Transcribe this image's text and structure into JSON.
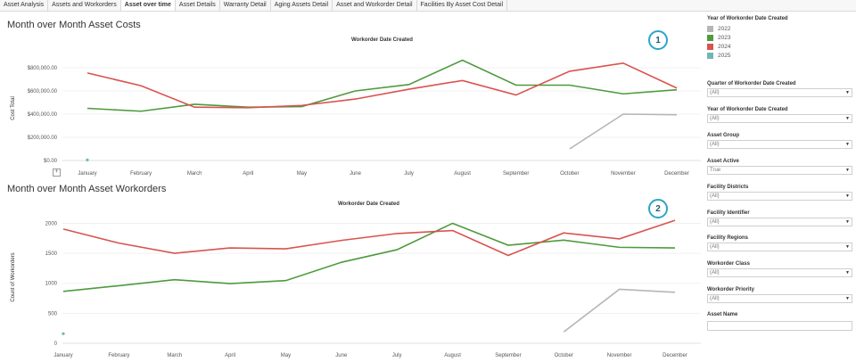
{
  "tabs": [
    {
      "label": "Asset Analysis",
      "active": false
    },
    {
      "label": "Assets and Workorders",
      "active": false
    },
    {
      "label": "Asset over time",
      "active": true
    },
    {
      "label": "Asset Details",
      "active": false
    },
    {
      "label": "Warranty Detail",
      "active": false
    },
    {
      "label": "Aging Assets Detail",
      "active": false
    },
    {
      "label": "Asset and Workorder Detail",
      "active": false
    },
    {
      "label": "Facilities By Asset Cost Detail",
      "active": false
    }
  ],
  "costs_section": {
    "title": "Month over Month Asset Costs",
    "badge": "1"
  },
  "workorders_section": {
    "title": "Month over Month Asset Workorders",
    "badge": "2"
  },
  "legend": {
    "title": "Year of Workorder Date Created",
    "items": [
      {
        "label": "2022",
        "color": "#b5b5b5"
      },
      {
        "label": "2023",
        "color": "#4e9a3e"
      },
      {
        "label": "2024",
        "color": "#d9534f"
      },
      {
        "label": "2025",
        "color": "#6fb7b3"
      }
    ]
  },
  "filters": [
    {
      "label": "Quarter of Workorder Date Created",
      "value": "(All)"
    },
    {
      "label": "Year of Workorder Date Created",
      "value": "(All)"
    },
    {
      "label": "Asset Group",
      "value": "(All)"
    },
    {
      "label": "Asset Active",
      "value": "True"
    },
    {
      "label": "Facility Districts",
      "value": "(All)"
    },
    {
      "label": "Facility Identifier",
      "value": "(All)"
    },
    {
      "label": "Facility Regions",
      "value": "(All)"
    },
    {
      "label": "Workorder Class",
      "value": "(All)"
    },
    {
      "label": "Workorder Priority",
      "value": "(All)"
    }
  ],
  "asset_name": {
    "label": "Asset Name",
    "value": ""
  },
  "chart_data": [
    {
      "type": "line",
      "title": "Workorder Date Created",
      "ylabel": "Cost Total",
      "ylim": [
        0,
        900000
      ],
      "yticks": [
        0,
        200000,
        400000,
        600000,
        800000
      ],
      "ytick_labels": [
        "$0.00",
        "$200,000.00",
        "$400,000.00",
        "$600,000.00",
        "$800,000.00"
      ],
      "categories": [
        "January",
        "February",
        "March",
        "April",
        "May",
        "June",
        "July",
        "August",
        "September",
        "October",
        "November",
        "December"
      ],
      "series": [
        {
          "name": "2022",
          "color": "#b5b5b5",
          "values": [
            null,
            null,
            null,
            null,
            null,
            null,
            null,
            null,
            null,
            100000,
            400000,
            395000
          ]
        },
        {
          "name": "2023",
          "color": "#4e9a3e",
          "values": [
            450000,
            425000,
            485000,
            460000,
            465000,
            600000,
            655000,
            865000,
            650000,
            650000,
            575000,
            610000
          ]
        },
        {
          "name": "2024",
          "color": "#d9534f",
          "values": [
            755000,
            645000,
            460000,
            455000,
            475000,
            530000,
            615000,
            690000,
            565000,
            770000,
            840000,
            625000
          ]
        },
        {
          "name": "2025",
          "color": "#6fb7b3",
          "values": [
            5000,
            null,
            null,
            null,
            null,
            null,
            null,
            null,
            null,
            null,
            null,
            null
          ]
        }
      ],
      "grid": true,
      "legend": "right panel"
    },
    {
      "type": "line",
      "title": "Workorder Date Created",
      "ylabel": "Count of Workorders",
      "ylim": [
        0,
        2200
      ],
      "yticks": [
        0,
        500,
        1000,
        1500,
        2000
      ],
      "ytick_labels": [
        "0",
        "500",
        "1000",
        "1500",
        "2000"
      ],
      "categories": [
        "January",
        "February",
        "March",
        "April",
        "May",
        "June",
        "July",
        "August",
        "September",
        "October",
        "November",
        "December"
      ],
      "series": [
        {
          "name": "2022",
          "color": "#b5b5b5",
          "values": [
            null,
            null,
            null,
            null,
            null,
            null,
            null,
            null,
            null,
            190,
            900,
            850
          ]
        },
        {
          "name": "2023",
          "color": "#4e9a3e",
          "values": [
            865,
            960,
            1060,
            995,
            1045,
            1350,
            1560,
            2000,
            1635,
            1720,
            1600,
            1590
          ]
        },
        {
          "name": "2024",
          "color": "#d9534f",
          "values": [
            1905,
            1670,
            1500,
            1590,
            1575,
            1715,
            1830,
            1880,
            1465,
            1840,
            1740,
            2050
          ]
        },
        {
          "name": "2025",
          "color": "#6fb7b3",
          "values": [
            160,
            null,
            null,
            null,
            null,
            null,
            null,
            null,
            null,
            null,
            null,
            null
          ]
        }
      ],
      "grid": true,
      "legend": "right panel"
    }
  ]
}
